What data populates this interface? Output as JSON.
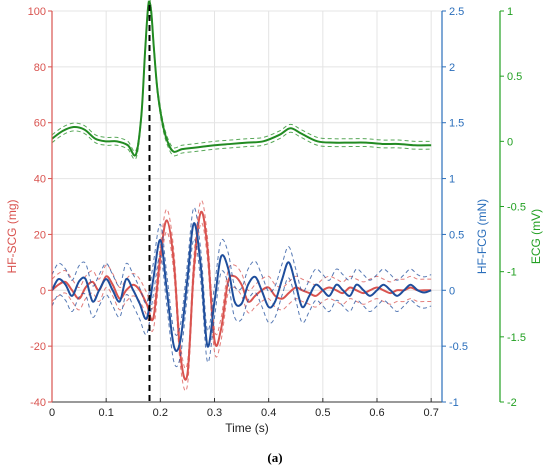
{
  "chart_data": {
    "type": "line",
    "caption": "(a)",
    "grid": true,
    "x_axis": {
      "label": "Time (s)",
      "range": [
        0,
        0.72
      ],
      "ticks": [
        "0",
        "0.1",
        "0.2",
        "0.3",
        "0.4",
        "0.5",
        "0.6",
        "0.7"
      ]
    },
    "y_axes": [
      {
        "id": "scg",
        "label": "HF-SCG (mg)",
        "color": "#d9534f",
        "range": [
          -40,
          100
        ],
        "ticks": [
          "-40",
          "-20",
          "0",
          "20",
          "40",
          "60",
          "80",
          "100"
        ]
      },
      {
        "id": "fcg",
        "label": "HF-FCG (mN)",
        "color": "#2a6ebb",
        "range": [
          -1,
          2.5
        ],
        "ticks": [
          "-1",
          "-0.5",
          "0",
          "0.5",
          "1",
          "1.5",
          "2",
          "2.5"
        ]
      },
      {
        "id": "ecg",
        "label": "ECG (mV)",
        "color": "#22a022",
        "range": [
          -2,
          1
        ],
        "ticks": [
          "-2",
          "-1.5",
          "-1",
          "-0.5",
          "0",
          "0.5",
          "1"
        ]
      }
    ],
    "marker_x": 0.18,
    "series": [
      {
        "axis": "ecg",
        "color": "#228b22",
        "x": [
          0,
          0.02,
          0.04,
          0.06,
          0.08,
          0.1,
          0.12,
          0.14,
          0.155,
          0.165,
          0.172,
          0.178,
          0.183,
          0.188,
          0.195,
          0.205,
          0.215,
          0.225,
          0.24,
          0.26,
          0.28,
          0.3,
          0.33,
          0.36,
          0.39,
          0.42,
          0.44,
          0.46,
          0.49,
          0.52,
          0.55,
          0.58,
          0.61,
          0.64,
          0.67,
          0.7
        ],
        "values": [
          0.02,
          0.08,
          0.11,
          0.09,
          0.02,
          0.0,
          0.0,
          -0.03,
          -0.1,
          0.2,
          0.7,
          1.05,
          1.0,
          0.72,
          0.38,
          0.12,
          -0.02,
          -0.08,
          -0.06,
          -0.05,
          -0.04,
          -0.03,
          -0.02,
          -0.01,
          0.0,
          0.05,
          0.1,
          0.06,
          0.0,
          -0.01,
          -0.01,
          -0.01,
          -0.02,
          -0.02,
          -0.03,
          -0.03
        ],
        "band": 0.03
      },
      {
        "axis": "scg",
        "color": "#d9534f",
        "x": [
          0,
          0.012,
          0.025,
          0.037,
          0.05,
          0.062,
          0.075,
          0.087,
          0.1,
          0.112,
          0.125,
          0.137,
          0.15,
          0.162,
          0.175,
          0.187,
          0.2,
          0.212,
          0.225,
          0.237,
          0.25,
          0.262,
          0.275,
          0.287,
          0.3,
          0.312,
          0.325,
          0.337,
          0.35,
          0.362,
          0.375,
          0.387,
          0.4,
          0.412,
          0.425,
          0.437,
          0.45,
          0.462,
          0.475,
          0.487,
          0.5,
          0.512,
          0.525,
          0.537,
          0.55,
          0.562,
          0.575,
          0.587,
          0.6,
          0.612,
          0.625,
          0.637,
          0.65,
          0.662,
          0.675,
          0.687,
          0.7
        ],
        "values": [
          0,
          2,
          3,
          0,
          -3,
          1,
          3,
          0,
          5,
          2,
          -3,
          0,
          2,
          0,
          -5,
          -10,
          12,
          25,
          10,
          -23,
          -30,
          8,
          28,
          15,
          -18,
          -14,
          3,
          5,
          2,
          -4,
          -2,
          0,
          1,
          -2,
          -3,
          -1,
          1,
          0,
          -1,
          -2,
          0,
          1,
          0,
          -1,
          1,
          0,
          -1,
          0,
          1,
          0,
          -1,
          0,
          0,
          1,
          0,
          0,
          0
        ],
        "band": 4
      },
      {
        "axis": "fcg",
        "color": "#1f4e9c",
        "x": [
          0,
          0.012,
          0.025,
          0.037,
          0.05,
          0.062,
          0.075,
          0.087,
          0.1,
          0.112,
          0.125,
          0.137,
          0.15,
          0.162,
          0.175,
          0.187,
          0.2,
          0.212,
          0.225,
          0.237,
          0.25,
          0.262,
          0.275,
          0.287,
          0.3,
          0.312,
          0.325,
          0.337,
          0.35,
          0.362,
          0.375,
          0.387,
          0.4,
          0.412,
          0.425,
          0.437,
          0.45,
          0.462,
          0.475,
          0.487,
          0.5,
          0.512,
          0.525,
          0.537,
          0.55,
          0.562,
          0.575,
          0.587,
          0.6,
          0.612,
          0.625,
          0.637,
          0.65,
          0.662,
          0.675,
          0.687,
          0.7
        ],
        "values": [
          0,
          0.1,
          0.05,
          -0.05,
          0.08,
          0.1,
          -0.1,
          0.0,
          0.1,
          0.0,
          -0.1,
          0.1,
          0.0,
          -0.12,
          -0.25,
          0.1,
          0.45,
          0.0,
          -0.5,
          -0.45,
          0.1,
          0.6,
          0.2,
          -0.5,
          -0.1,
          0.3,
          0.2,
          -0.1,
          -0.12,
          0.05,
          0.12,
          0.0,
          -0.15,
          -0.1,
          0.1,
          0.25,
          0.05,
          -0.15,
          -0.05,
          0.05,
          0.0,
          -0.05,
          0.05,
          0.0,
          -0.05,
          0.05,
          0.0,
          -0.05,
          0.0,
          0.05,
          0.0,
          -0.05,
          0.0,
          0.05,
          0.0,
          -0.02,
          0.0
        ],
        "band": 0.14
      }
    ]
  }
}
